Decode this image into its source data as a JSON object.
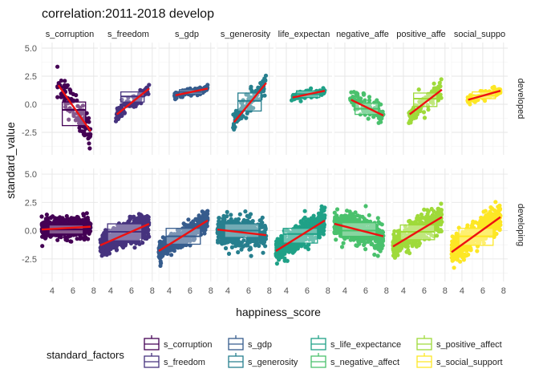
{
  "chart_data": {
    "type": "scatter",
    "title": "correlation:2011-2018 develop",
    "xlabel": "happiness_score",
    "ylabel": "standard_value",
    "xlim": [
      3,
      8.4
    ],
    "ylim": [
      -4.5,
      5.5
    ],
    "x_ticks": [
      4,
      6,
      8
    ],
    "y_ticks": [
      -2.5,
      0.0,
      2.5,
      5.0
    ],
    "y_tick_labels": [
      "-2.5",
      "0.0",
      "2.5",
      "5.0"
    ],
    "grid": true,
    "legend_title": "standard_factors",
    "legend_position": "bottom",
    "rows": [
      {
        "label": "developed",
        "x_range": [
          4.5,
          7.7
        ]
      },
      {
        "label": "developing",
        "x_range": [
          3.0,
          7.7
        ]
      }
    ],
    "panels": [
      {
        "factor": "s_corruption",
        "strip": "s_corruption",
        "color": "#440154",
        "developed": {
          "mean": 0.0,
          "sd": 1.2,
          "trend": [
            [
              4.6,
              1.7
            ],
            [
              7.7,
              -2.4
            ]
          ],
          "box": [
            -1.9,
            -0.5,
            0.2
          ]
        },
        "developing": {
          "mean": 0.1,
          "sd": 0.7,
          "trend": [
            [
              3.0,
              0.1
            ],
            [
              7.7,
              0.35
            ]
          ],
          "box": [
            -0.3,
            0.1,
            0.5
          ]
        }
      },
      {
        "factor": "s_freedom",
        "strip": "s_freedom",
        "color": "#46337E",
        "developed": {
          "mean": 0.6,
          "sd": 0.5,
          "trend": [
            [
              4.6,
              -0.9
            ],
            [
              7.7,
              1.4
            ]
          ],
          "box": [
            0.2,
            0.7,
            1.1
          ]
        },
        "developing": {
          "mean": -0.2,
          "sd": 0.9,
          "trend": [
            [
              3.0,
              -1.3
            ],
            [
              7.7,
              0.6
            ]
          ],
          "box": [
            -0.9,
            -0.1,
            0.6
          ]
        }
      },
      {
        "factor": "s_gdp",
        "strip": "s_gdp",
        "color": "#365C8D",
        "developed": {
          "mean": 1.1,
          "sd": 0.25,
          "trend": [
            [
              4.6,
              0.8
            ],
            [
              7.7,
              1.4
            ]
          ],
          "box": [
            0.9,
            1.1,
            1.3
          ]
        },
        "developing": {
          "mean": -0.5,
          "sd": 0.7,
          "trend": [
            [
              3.0,
              -1.8
            ],
            [
              7.7,
              0.9
            ]
          ],
          "box": [
            -1.2,
            -0.5,
            0.2
          ]
        }
      },
      {
        "factor": "s_generosity",
        "strip": "s_generosity",
        "color": "#277F8E",
        "developed": {
          "mean": 0.1,
          "sd": 0.9,
          "trend": [
            [
              4.6,
              -1.6
            ],
            [
              7.7,
              1.9
            ]
          ],
          "box": [
            -0.6,
            0.3,
            1.0
          ]
        },
        "developing": {
          "mean": 0.1,
          "sd": 1.0,
          "trend": [
            [
              3.0,
              0.1
            ],
            [
              7.7,
              -0.4
            ]
          ],
          "box": [
            -0.6,
            0.0,
            0.6
          ]
        }
      },
      {
        "factor": "s_life_expectance",
        "strip": "life_expectan",
        "color": "#1FA187",
        "developed": {
          "mean": 0.9,
          "sd": 0.3,
          "trend": [
            [
              4.6,
              0.6
            ],
            [
              7.7,
              1.2
            ]
          ],
          "box": [
            0.6,
            0.9,
            1.2
          ]
        },
        "developing": {
          "mean": -0.5,
          "sd": 0.9,
          "trend": [
            [
              3.0,
              -1.8
            ],
            [
              7.7,
              0.9
            ]
          ],
          "box": [
            -1.1,
            -0.3,
            0.2
          ]
        }
      },
      {
        "factor": "s_negative_affect",
        "strip": "negative_affe",
        "color": "#4AC16D",
        "developed": {
          "mean": -0.3,
          "sd": 0.8,
          "trend": [
            [
              4.6,
              0.4
            ],
            [
              7.7,
              -1.0
            ]
          ],
          "box": [
            -0.9,
            -0.4,
            0.1
          ]
        },
        "developing": {
          "mean": 0.2,
          "sd": 1.0,
          "trend": [
            [
              3.0,
              0.6
            ],
            [
              7.7,
              -0.5
            ]
          ],
          "box": [
            -0.5,
            0.0,
            0.7
          ]
        }
      },
      {
        "factor": "s_positive_affect",
        "strip": "positive_affe",
        "color": "#9FDA3A",
        "developed": {
          "mean": 0.3,
          "sd": 0.8,
          "trend": [
            [
              4.6,
              -0.9
            ],
            [
              7.7,
              1.3
            ]
          ],
          "box": [
            -0.2,
            0.5,
            1.0
          ]
        },
        "developing": {
          "mean": -0.2,
          "sd": 0.9,
          "trend": [
            [
              3.0,
              -1.4
            ],
            [
              7.7,
              1.2
            ]
          ],
          "box": [
            -0.8,
            -0.1,
            0.5
          ]
        }
      },
      {
        "factor": "s_social_support",
        "strip": "social_suppo",
        "color": "#FDE725",
        "developed": {
          "mean": 0.8,
          "sd": 0.3,
          "trend": [
            [
              4.6,
              0.4
            ],
            [
              7.7,
              1.2
            ]
          ],
          "box": [
            0.5,
            0.8,
            1.1
          ]
        },
        "developing": {
          "mean": -0.6,
          "sd": 1.0,
          "trend": [
            [
              3.0,
              -1.9
            ],
            [
              7.7,
              1.2
            ]
          ],
          "box": [
            -1.3,
            -0.5,
            0.2
          ]
        }
      }
    ],
    "trend_color": "#EE1111",
    "legend": [
      {
        "label": "s_corruption",
        "color": "#440154"
      },
      {
        "label": "s_freedom",
        "color": "#46337E"
      },
      {
        "label": "s_gdp",
        "color": "#365C8D"
      },
      {
        "label": "s_generosity",
        "color": "#277F8E"
      },
      {
        "label": "s_life_expectance",
        "color": "#1FA187"
      },
      {
        "label": "s_negative_affect",
        "color": "#4AC16D"
      },
      {
        "label": "s_positive_affect",
        "color": "#9FDA3A"
      },
      {
        "label": "s_social_support",
        "color": "#FDE725"
      }
    ]
  }
}
